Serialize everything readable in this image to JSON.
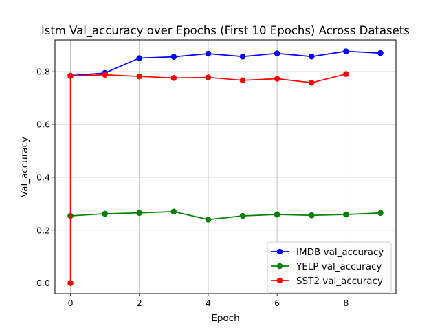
{
  "chart_data": {
    "type": "line",
    "title": "lstm Val_accuracy over Epochs (First 10 Epochs) Across Datasets",
    "xlabel": "Epoch",
    "ylabel": "Val_accuracy",
    "xlim": [
      -0.45,
      9.45
    ],
    "ylim": [
      -0.04,
      0.92
    ],
    "xticks": [
      0,
      2,
      4,
      6,
      8
    ],
    "yticks": [
      0.0,
      0.2,
      0.4,
      0.6,
      0.8
    ],
    "ytick_labels": [
      "0.0",
      "0.2",
      "0.4",
      "0.6",
      "0.8"
    ],
    "grid": true,
    "legend_position": "lower-right",
    "series": [
      {
        "name": "IMDB val_accuracy",
        "color": "#0000ff",
        "x": [
          0,
          1,
          2,
          3,
          4,
          5,
          6,
          7,
          8,
          9
        ],
        "y": [
          0.785,
          0.795,
          0.851,
          0.856,
          0.868,
          0.857,
          0.869,
          0.857,
          0.877,
          0.87
        ]
      },
      {
        "name": "YELP val_accuracy",
        "color": "#008000",
        "x": [
          0,
          1,
          2,
          3,
          4,
          5,
          6,
          7,
          8,
          9
        ],
        "y": [
          0.254,
          0.262,
          0.265,
          0.27,
          0.24,
          0.254,
          0.259,
          0.256,
          0.259,
          0.265
        ]
      },
      {
        "name": "SST2 val_accuracy",
        "color": "#ff0000",
        "x": [
          0,
          0,
          1,
          2,
          3,
          4,
          5,
          6,
          7,
          8
        ],
        "y": [
          0.0,
          0.784,
          0.788,
          0.782,
          0.776,
          0.778,
          0.767,
          0.773,
          0.758,
          0.791
        ]
      }
    ]
  }
}
